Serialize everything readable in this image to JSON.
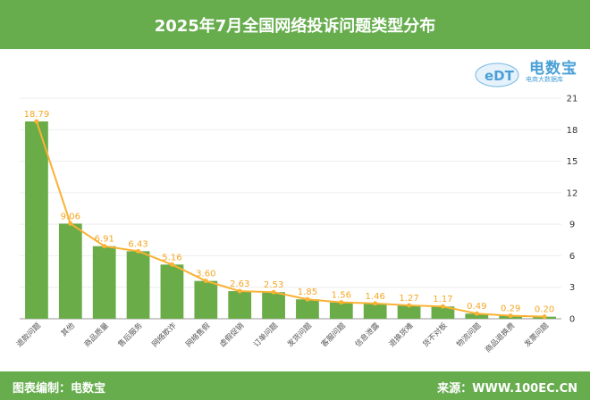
{
  "header": {
    "title": "2025年7月全国网络投诉问题类型分布"
  },
  "logo": {
    "mark": "eDT",
    "name": "电数宝",
    "tagline": "电商大数据库"
  },
  "footer": {
    "left": "图表编制：电数宝",
    "right": "来源：WWW.100EC.CN"
  },
  "colors": {
    "bar": "#6aac48",
    "line": "#f9b233",
    "header": "#67ad4e"
  },
  "chart_data": {
    "type": "bar",
    "categories": [
      "退款问题",
      "其他",
      "商品质量",
      "售后服务",
      "网络欺诈",
      "网络售假",
      "虚假促销",
      "订单问题",
      "发货问题",
      "客服问题",
      "信息泄露",
      "退换货难",
      "货不对板",
      "物流问题",
      "商品退换费",
      "发票问题"
    ],
    "values": [
      18.79,
      9.06,
      6.91,
      6.43,
      5.16,
      3.6,
      2.63,
      2.53,
      1.85,
      1.56,
      1.46,
      1.27,
      1.17,
      0.49,
      0.29,
      0.2
    ],
    "value_labels": [
      "18.79",
      "9.06",
      "6.91",
      "6.43",
      "5.16",
      "3.60",
      "2.63",
      "2.53",
      "1.85",
      "1.56",
      "1.46",
      "1.27",
      "1.17",
      "0.49",
      "0.29",
      "0.20"
    ],
    "ylim": [
      0,
      21
    ],
    "y_ticks": [
      "0",
      "3",
      "6",
      "9",
      "12",
      "15",
      "18",
      "21"
    ],
    "grid": true,
    "overlay": "line"
  }
}
